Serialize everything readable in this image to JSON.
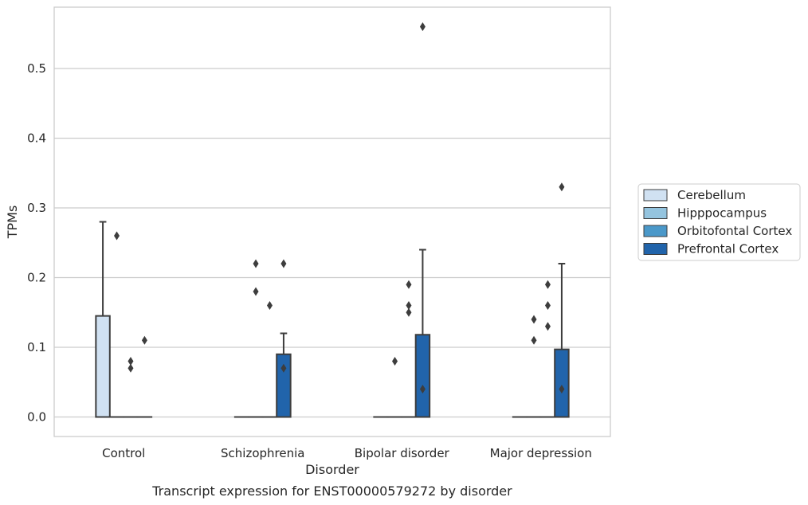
{
  "chart_data": {
    "type": "box",
    "xlabel": "Disorder",
    "ylabel": "TPMs",
    "caption": "Transcript expression for ENST00000579272 by disorder",
    "ylim": [
      -0.028,
      0.588
    ],
    "yticks": [
      0.0,
      0.1,
      0.2,
      0.3,
      0.4,
      0.5
    ],
    "ytick_labels": [
      "0.0",
      "0.1",
      "0.2",
      "0.3",
      "0.4",
      "0.5"
    ],
    "grid": "horizontal",
    "legend_position": "right",
    "categories": [
      "Control",
      "Schizophrenia",
      "Bipolar disorder",
      "Major depression"
    ],
    "series": [
      {
        "name": "Cerebellum",
        "color": "#d0e1f2",
        "boxes": [
          {
            "min": 0.0,
            "q1": 0.0,
            "median": 0.0,
            "q3": 0.145,
            "max": 0.28,
            "outliers": []
          },
          {
            "min": 0.0,
            "q1": 0.0,
            "median": 0.0,
            "q3": 0.0,
            "max": 0.0,
            "outliers": []
          },
          {
            "min": 0.0,
            "q1": 0.0,
            "median": 0.0,
            "q3": 0.0,
            "max": 0.0,
            "outliers": []
          },
          {
            "min": 0.0,
            "q1": 0.0,
            "median": 0.0,
            "q3": 0.0,
            "max": 0.0,
            "outliers": []
          }
        ]
      },
      {
        "name": "Hipppocampus",
        "color": "#94c4df",
        "boxes": [
          {
            "min": 0.0,
            "q1": 0.0,
            "median": 0.0,
            "q3": 0.0,
            "max": 0.0,
            "outliers": [
              0.26
            ]
          },
          {
            "min": 0.0,
            "q1": 0.0,
            "median": 0.0,
            "q3": 0.0,
            "max": 0.0,
            "outliers": [
              0.22,
              0.18
            ]
          },
          {
            "min": 0.0,
            "q1": 0.0,
            "median": 0.0,
            "q3": 0.0,
            "max": 0.0,
            "outliers": [
              0.08
            ]
          },
          {
            "min": 0.0,
            "q1": 0.0,
            "median": 0.0,
            "q3": 0.0,
            "max": 0.0,
            "outliers": [
              0.14,
              0.11
            ]
          }
        ]
      },
      {
        "name": "Orbitofontal Cortex",
        "color": "#4a98c9",
        "boxes": [
          {
            "min": 0.0,
            "q1": 0.0,
            "median": 0.0,
            "q3": 0.0,
            "max": 0.0,
            "outliers": [
              0.08,
              0.07
            ]
          },
          {
            "min": 0.0,
            "q1": 0.0,
            "median": 0.0,
            "q3": 0.0,
            "max": 0.0,
            "outliers": [
              0.16
            ]
          },
          {
            "min": 0.0,
            "q1": 0.0,
            "median": 0.0,
            "q3": 0.0,
            "max": 0.0,
            "outliers": [
              0.19,
              0.16,
              0.15
            ]
          },
          {
            "min": 0.0,
            "q1": 0.0,
            "median": 0.0,
            "q3": 0.0,
            "max": 0.0,
            "outliers": [
              0.19,
              0.16,
              0.13
            ]
          }
        ]
      },
      {
        "name": "Prefrontal Cortex",
        "color": "#2164ab",
        "boxes": [
          {
            "min": 0.0,
            "q1": 0.0,
            "median": 0.0,
            "q3": 0.0,
            "max": 0.0,
            "outliers": [
              0.11
            ]
          },
          {
            "min": 0.0,
            "q1": 0.0,
            "median": 0.0,
            "q3": 0.09,
            "max": 0.12,
            "outliers": [
              0.22,
              0.07
            ]
          },
          {
            "min": 0.0,
            "q1": 0.0,
            "median": 0.0,
            "q3": 0.118,
            "max": 0.24,
            "outliers": [
              0.56,
              0.04
            ]
          },
          {
            "min": 0.0,
            "q1": 0.0,
            "median": 0.0,
            "q3": 0.097,
            "max": 0.22,
            "outliers": [
              0.33,
              0.04
            ]
          }
        ]
      }
    ]
  }
}
